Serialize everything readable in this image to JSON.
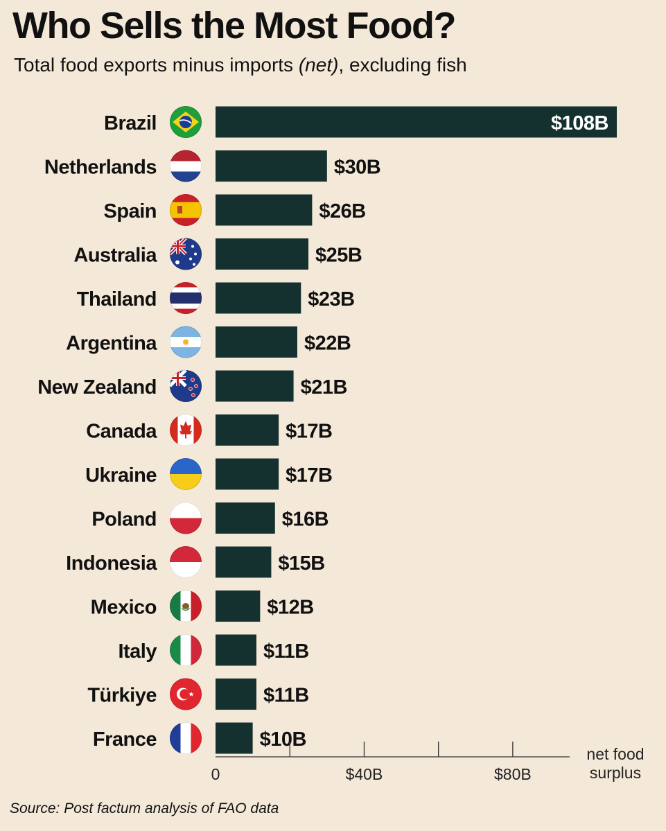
{
  "title": "Who Sells the Most Food?",
  "subtitle": {
    "before": "Total food exports minus imports ",
    "italic": "(net)",
    "after": ", excluding fish"
  },
  "source": "Source: Post factum analysis of FAO data",
  "colors": {
    "background": "#f4e9d8",
    "bar": "#14312f",
    "text": "#111111"
  },
  "chart_data": {
    "type": "bar",
    "orientation": "horizontal",
    "categories": [
      "Brazil",
      "Netherlands",
      "Spain",
      "Australia",
      "Thailand",
      "Argentina",
      "New Zealand",
      "Canada",
      "Ukraine",
      "Poland",
      "Indonesia",
      "Mexico",
      "Italy",
      "Türkiye",
      "France"
    ],
    "values": [
      108,
      30,
      26,
      25,
      23,
      22,
      21,
      17,
      17,
      16,
      15,
      12,
      11,
      11,
      10
    ],
    "data_labels": [
      "$108B",
      "$30B",
      "$26B",
      "$25B",
      "$23B",
      "$22B",
      "$21B",
      "$17B",
      "$17B",
      "$16B",
      "$15B",
      "$12B",
      "$11B",
      "$11B",
      "$10B"
    ],
    "flags": [
      "brazil-flag-icon",
      "netherlands-flag-icon",
      "spain-flag-icon",
      "australia-flag-icon",
      "thailand-flag-icon",
      "argentina-flag-icon",
      "new-zealand-flag-icon",
      "canada-flag-icon",
      "ukraine-flag-icon",
      "poland-flag-icon",
      "indonesia-flag-icon",
      "mexico-flag-icon",
      "italy-flag-icon",
      "turkiye-flag-icon",
      "france-flag-icon"
    ],
    "x_ticks": [
      0,
      20,
      40,
      60,
      80
    ],
    "x_tick_labels": [
      "0",
      "",
      "$40B",
      "",
      "$80B"
    ],
    "xlim": [
      0,
      108
    ],
    "xlabel": [
      "net food",
      "surplus"
    ],
    "grid": false
  }
}
